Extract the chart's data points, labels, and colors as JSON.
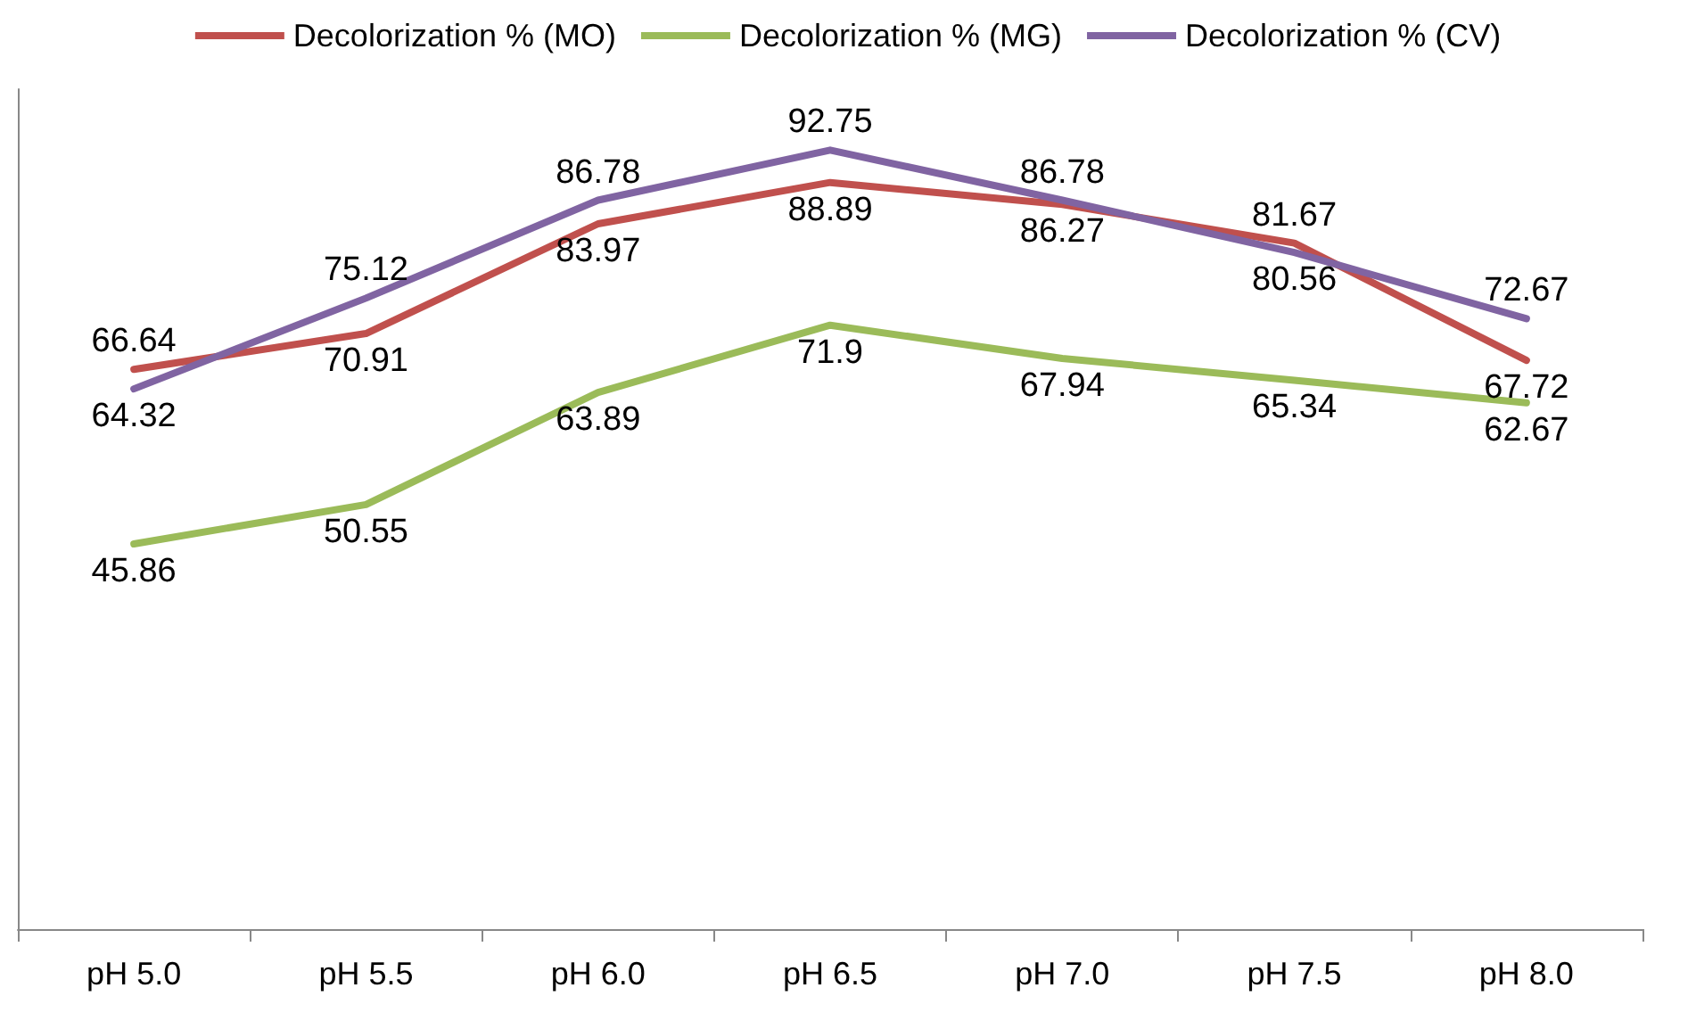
{
  "chart_data": {
    "type": "line",
    "categories": [
      "pH 5.0",
      "pH 5.5",
      "pH 6.0",
      "pH 6.5",
      "pH 7.0",
      "pH 7.5",
      "pH 8.0"
    ],
    "series": [
      {
        "name": "Decolorization % (MO)",
        "color": "#c0504d",
        "values": [
          66.64,
          70.91,
          83.97,
          88.89,
          86.27,
          81.67,
          67.72
        ]
      },
      {
        "name": "Decolorization % (MG)",
        "color": "#9bbb59",
        "values": [
          45.86,
          50.55,
          63.89,
          71.9,
          67.94,
          65.34,
          62.67
        ]
      },
      {
        "name": "Decolorization % (CV)",
        "color": "#8064a2",
        "values": [
          64.32,
          75.12,
          86.78,
          92.75,
          86.78,
          80.56,
          72.67
        ]
      }
    ],
    "relative": false,
    "data_labels": true,
    "legend": "top",
    "grid": false,
    "marker": "none",
    "line_style": "solid",
    "tick_labels": "x"
  }
}
